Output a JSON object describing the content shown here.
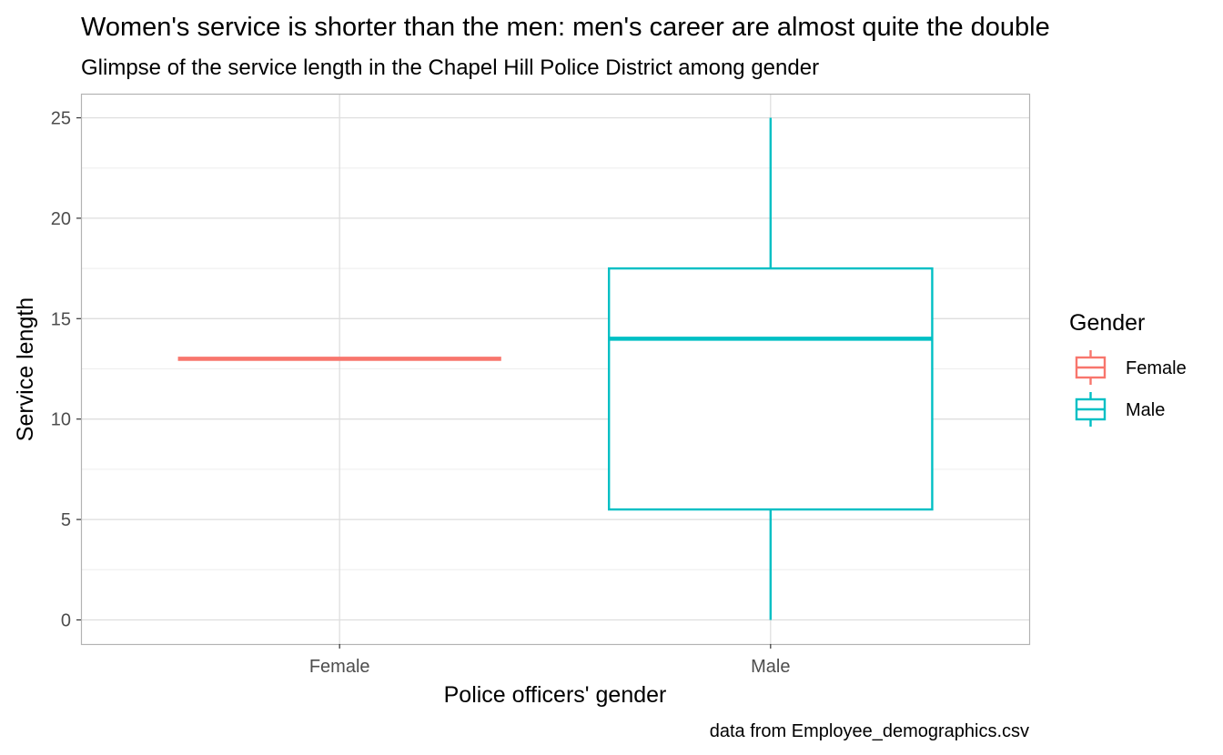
{
  "chart_data": {
    "type": "boxplot",
    "title": "Women's service is shorter than the men: men's career are almost quite the double",
    "subtitle": "Glimpse of the service length in the Chapel Hill Police District among gender",
    "xlabel": "Police officers' gender",
    "ylabel": "Service length",
    "caption": "data from Employee_demographics.csv",
    "categories": [
      "Female",
      "Male"
    ],
    "ylim": [
      -1.2,
      26.2
    ],
    "yticks": [
      0,
      5,
      10,
      15,
      20,
      25
    ],
    "grid": true,
    "legend": {
      "title": "Gender",
      "position": "right",
      "entries": [
        "Female",
        "Male"
      ]
    },
    "series": [
      {
        "name": "Female",
        "color": "#F8766D",
        "min": 13,
        "q1": 13,
        "median": 13,
        "q3": 13,
        "max": 13
      },
      {
        "name": "Male",
        "color": "#00BFC4",
        "min": 0,
        "q1": 5.5,
        "median": 14,
        "q3": 17.5,
        "max": 25
      }
    ]
  }
}
